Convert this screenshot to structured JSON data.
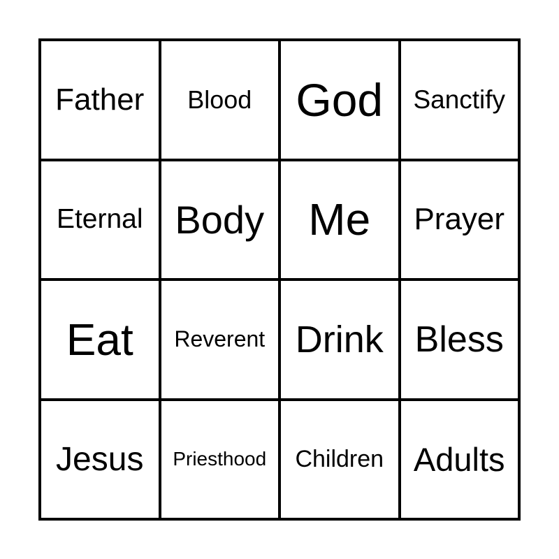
{
  "cells": [
    {
      "text": "Father",
      "size": 44
    },
    {
      "text": "Blood",
      "size": 36
    },
    {
      "text": "God",
      "size": 66
    },
    {
      "text": "Sanctify",
      "size": 37
    },
    {
      "text": "Eternal",
      "size": 39
    },
    {
      "text": "Body",
      "size": 56
    },
    {
      "text": "Me",
      "size": 64
    },
    {
      "text": "Prayer",
      "size": 44
    },
    {
      "text": "Eat",
      "size": 64
    },
    {
      "text": "Reverent",
      "size": 32
    },
    {
      "text": "Drink",
      "size": 54
    },
    {
      "text": "Bless",
      "size": 52
    },
    {
      "text": "Jesus",
      "size": 48
    },
    {
      "text": "Priesthood",
      "size": 28
    },
    {
      "text": "Children",
      "size": 34
    },
    {
      "text": "Adults",
      "size": 47
    }
  ]
}
